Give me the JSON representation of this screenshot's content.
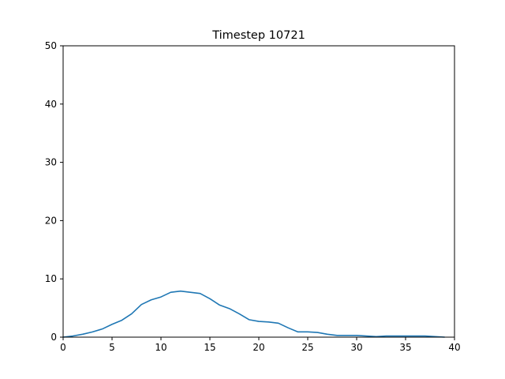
{
  "chart_data": {
    "type": "line",
    "title": "Timestep 10721",
    "xlabel": "",
    "ylabel": "",
    "xlim": [
      0,
      40
    ],
    "ylim": [
      0,
      50
    ],
    "xticks": [
      0,
      5,
      10,
      15,
      20,
      25,
      30,
      35,
      40
    ],
    "yticks": [
      0,
      10,
      20,
      30,
      40,
      50
    ],
    "grid": false,
    "series": [
      {
        "color": "#1f77b4",
        "x": [
          0,
          1,
          2,
          3,
          4,
          5,
          6,
          7,
          8,
          9,
          10,
          11,
          12,
          13,
          14,
          15,
          16,
          17,
          18,
          19,
          20,
          21,
          22,
          23,
          24,
          25,
          26,
          27,
          28,
          29,
          30,
          31,
          32,
          33,
          34,
          35,
          36,
          37,
          38,
          39
        ],
        "y": [
          0.0,
          0.2,
          0.5,
          0.9,
          1.4,
          2.2,
          2.9,
          4.0,
          5.6,
          6.4,
          6.9,
          7.7,
          7.9,
          7.7,
          7.5,
          6.6,
          5.5,
          4.9,
          4.0,
          3.0,
          2.7,
          2.6,
          2.4,
          1.6,
          0.9,
          0.9,
          0.8,
          0.5,
          0.3,
          0.3,
          0.3,
          0.2,
          0.1,
          0.2,
          0.2,
          0.2,
          0.2,
          0.2,
          0.1,
          0.0
        ]
      }
    ]
  }
}
